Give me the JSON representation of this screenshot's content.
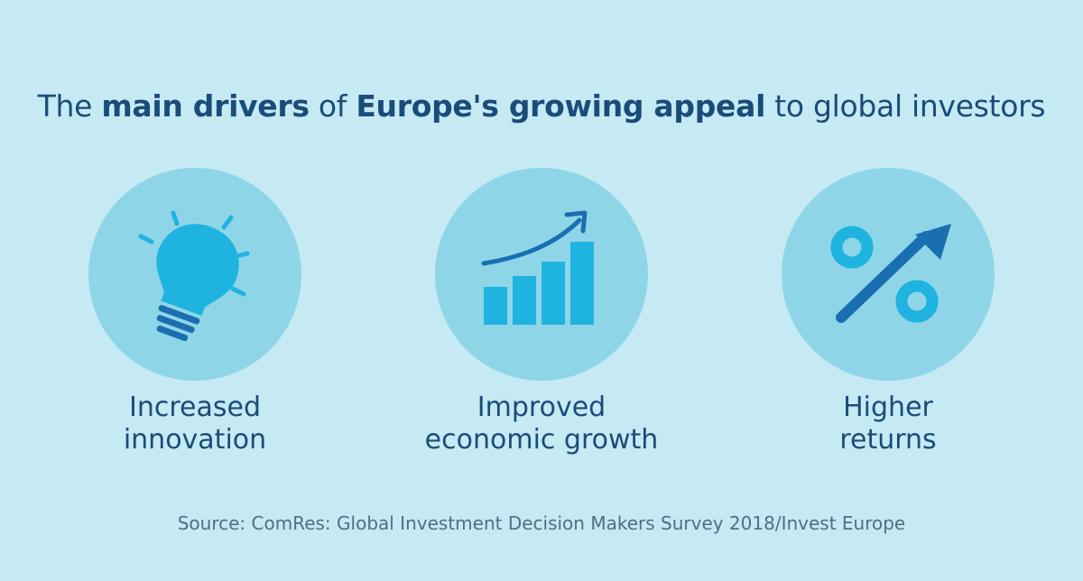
{
  "title": {
    "part1": "The ",
    "bold1": "main drivers",
    "part2": " of ",
    "bold2": "Europe's growing appeal",
    "part3": " to global investors"
  },
  "drivers": [
    {
      "icon": "lightbulb-icon",
      "line1": "Increased",
      "line2": "innovation"
    },
    {
      "icon": "bar-chart-growth-icon",
      "line1": "Improved",
      "line2": "economic growth"
    },
    {
      "icon": "percent-arrow-icon",
      "line1": "Higher",
      "line2": "returns"
    }
  ],
  "source": "Source: ComRes: Global Investment Decision Makers Survey 2018/Invest Europe",
  "colors": {
    "background": "#c6eaf3",
    "circle": "#8fd5e8",
    "icon_light": "#1fb3e0",
    "icon_dark": "#1a6fb0",
    "text": "#1a4c79"
  }
}
